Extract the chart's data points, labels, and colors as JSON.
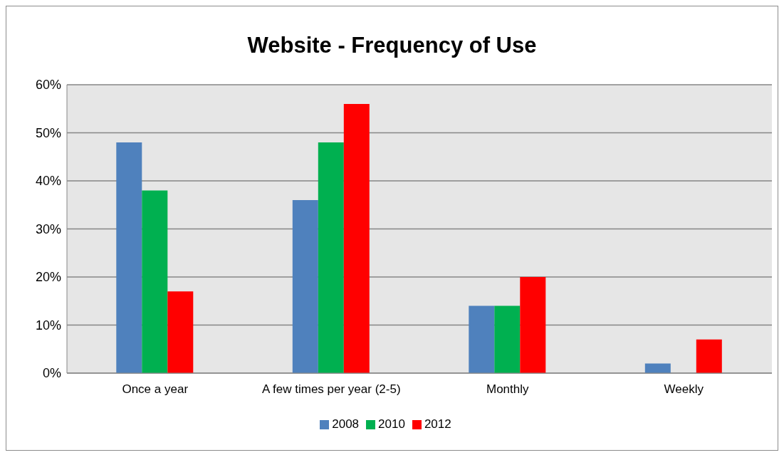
{
  "chart_data": {
    "type": "bar",
    "title": "Website - Frequency of Use",
    "categories": [
      "Once a year",
      "A few times per year (2-5)",
      "Monthly",
      "Weekly"
    ],
    "series": [
      {
        "name": "2008",
        "color": "#4f81bd",
        "values": [
          48,
          36,
          14,
          2
        ]
      },
      {
        "name": "2010",
        "color": "#00b050",
        "values": [
          38,
          48,
          14,
          0
        ]
      },
      {
        "name": "2012",
        "color": "#ff0000",
        "values": [
          17,
          56,
          20,
          7
        ]
      }
    ],
    "ylim": [
      0,
      60
    ],
    "yticks": [
      {
        "value": 0,
        "label": "0%"
      },
      {
        "value": 10,
        "label": "10%"
      },
      {
        "value": 20,
        "label": "20%"
      },
      {
        "value": 30,
        "label": "30%"
      },
      {
        "value": 40,
        "label": "40%"
      },
      {
        "value": 50,
        "label": "50%"
      },
      {
        "value": 60,
        "label": "60%"
      }
    ],
    "grid": "y",
    "legend": "bottom"
  }
}
